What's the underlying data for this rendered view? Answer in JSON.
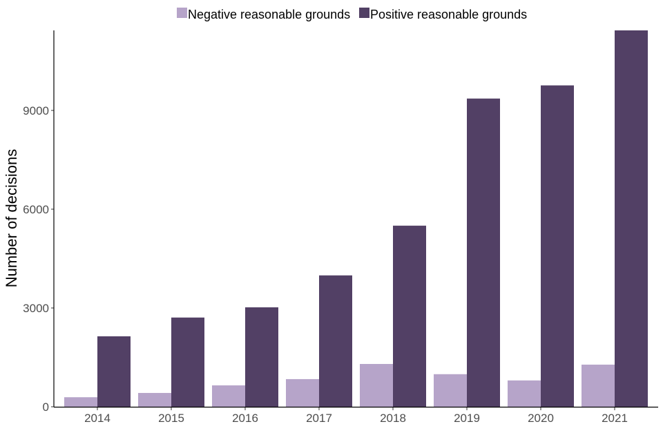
{
  "chart_data": {
    "type": "bar",
    "title": "",
    "xlabel": "",
    "ylabel": "Number of decisions",
    "categories": [
      "2014",
      "2015",
      "2016",
      "2017",
      "2018",
      "2019",
      "2020",
      "2021"
    ],
    "series": [
      {
        "name": "Negative reasonable grounds",
        "color": "#b6a4c9",
        "values": [
          290,
          420,
          650,
          840,
          1300,
          990,
          800,
          1280
        ]
      },
      {
        "name": "Positive reasonable grounds",
        "color": "#524065",
        "values": [
          2140,
          2710,
          3020,
          3990,
          5500,
          9360,
          9760,
          11430
        ]
      }
    ],
    "ylim": [
      0,
      11430
    ],
    "yticks": [
      "0",
      "3000",
      "6000",
      "9000"
    ],
    "grid": false,
    "legend_position": "top"
  }
}
